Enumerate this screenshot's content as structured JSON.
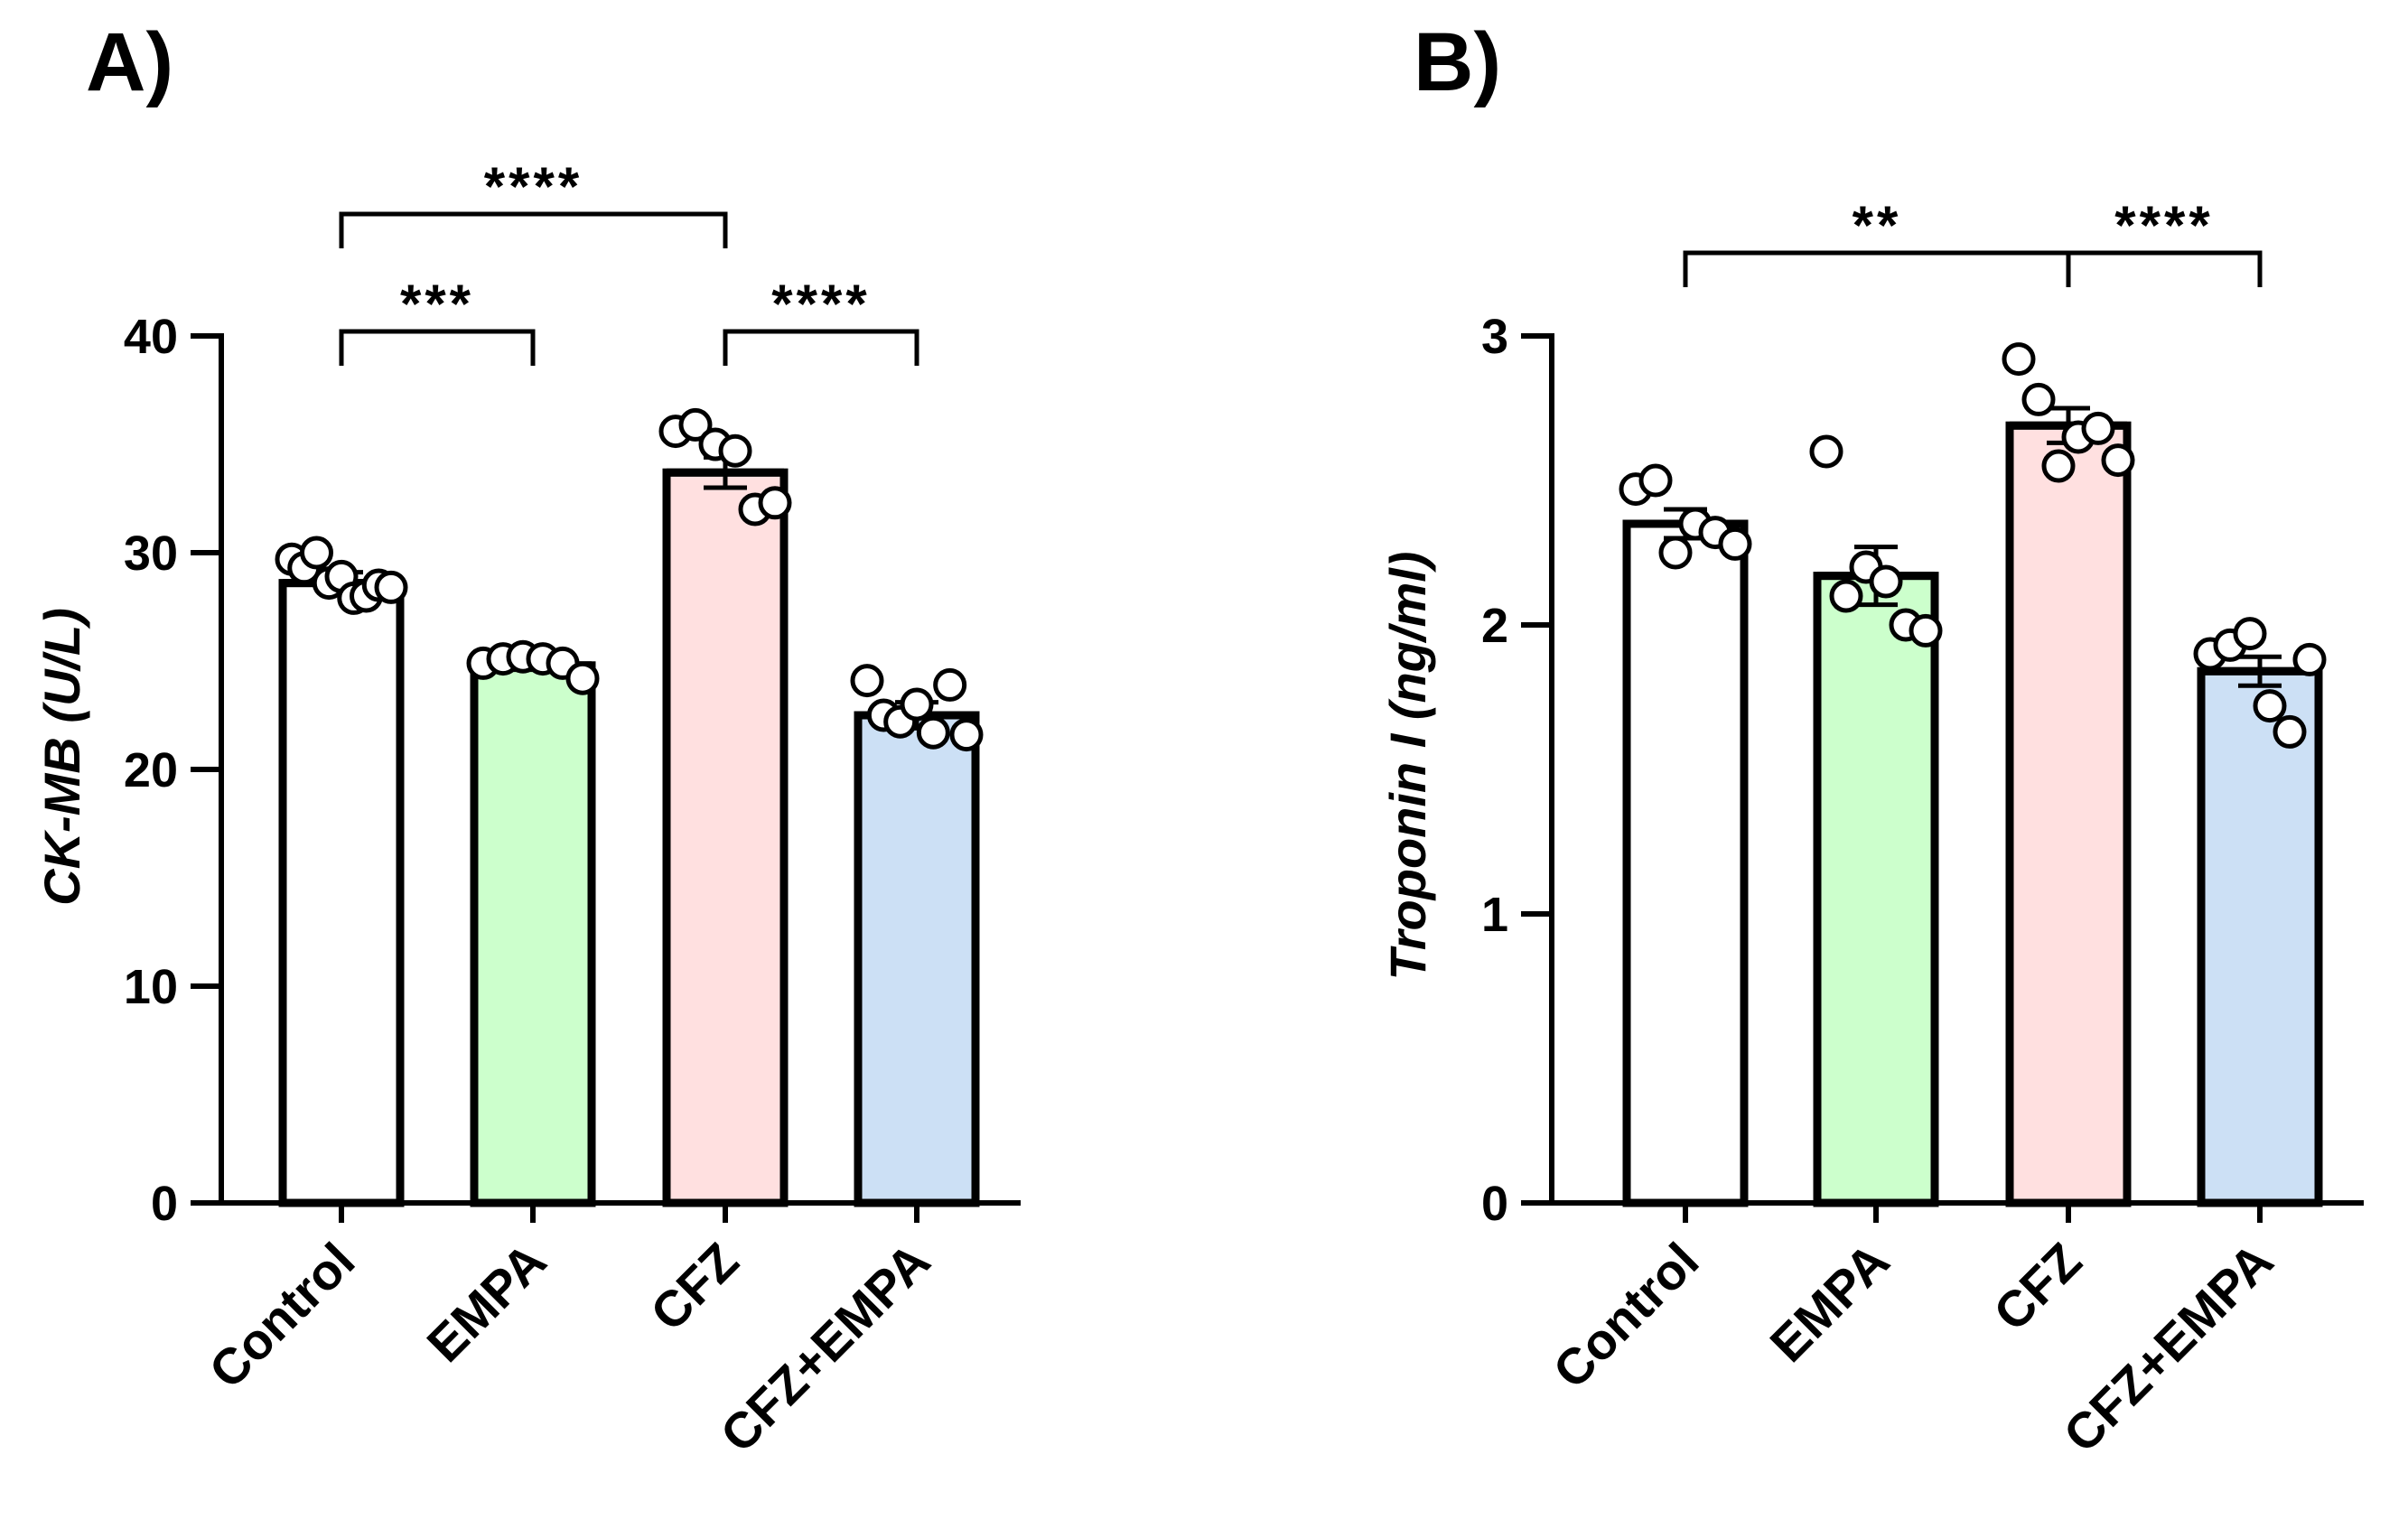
{
  "chart_data": [
    {
      "type": "bar",
      "panel_label": "A)",
      "ylabel": "CK-MB (U/L)",
      "xlabel": "",
      "ylim": [
        0,
        40
      ],
      "yticks": [
        0,
        10,
        20,
        30,
        40
      ],
      "categories": [
        "Control",
        "EMPA",
        "CFZ",
        "CFZ+EMPA"
      ],
      "colors": [
        "#ffffff",
        "#ccffcc",
        "#ffe0e0",
        "#cce0f5"
      ],
      "means": [
        28.6,
        24.8,
        33.7,
        22.5
      ],
      "sem": [
        0.5,
        0.2,
        0.7,
        0.6
      ],
      "points": [
        [
          29.7,
          29.3,
          30.0,
          28.6,
          28.9,
          27.9,
          28.0,
          28.5,
          28.4
        ],
        [
          24.9,
          25.1,
          25.2,
          25.1,
          24.9,
          24.2
        ],
        [
          35.6,
          35.9,
          35.0,
          34.7,
          32.0,
          32.3
        ],
        [
          24.1,
          22.5,
          22.2,
          23.0,
          21.7,
          23.9,
          21.6
        ]
      ],
      "comparisons": [
        {
          "from": 0,
          "to": 1,
          "label": "***"
        },
        {
          "from": 0,
          "to": 2,
          "label": "****"
        },
        {
          "from": 2,
          "to": 3,
          "label": "****"
        }
      ]
    },
    {
      "type": "bar",
      "panel_label": "B)",
      "ylabel": "Troponin I (ng/ml)",
      "xlabel": "",
      "ylim": [
        0,
        3
      ],
      "yticks": [
        0,
        1,
        2,
        3
      ],
      "categories": [
        "Control",
        "EMPA",
        "CFZ",
        "CFZ+EMPA"
      ],
      "colors": [
        "#ffffff",
        "#ccffcc",
        "#ffe0e0",
        "#cce0f5"
      ],
      "means": [
        2.35,
        2.17,
        2.69,
        1.84
      ],
      "sem": [
        0.05,
        0.1,
        0.06,
        0.05
      ],
      "points": [
        [
          2.47,
          2.5,
          2.25,
          2.35,
          2.32,
          2.28
        ],
        [
          2.6,
          2.1,
          2.2,
          2.15,
          2.0,
          1.98
        ],
        [
          2.92,
          2.78,
          2.55,
          2.65,
          2.68,
          2.57
        ],
        [
          1.9,
          1.93,
          1.97,
          1.72,
          1.63,
          1.88
        ]
      ],
      "comparisons": [
        {
          "from": 0,
          "to": 2,
          "label": "**"
        },
        {
          "from": 2,
          "to": 3,
          "label": "****"
        }
      ]
    }
  ]
}
